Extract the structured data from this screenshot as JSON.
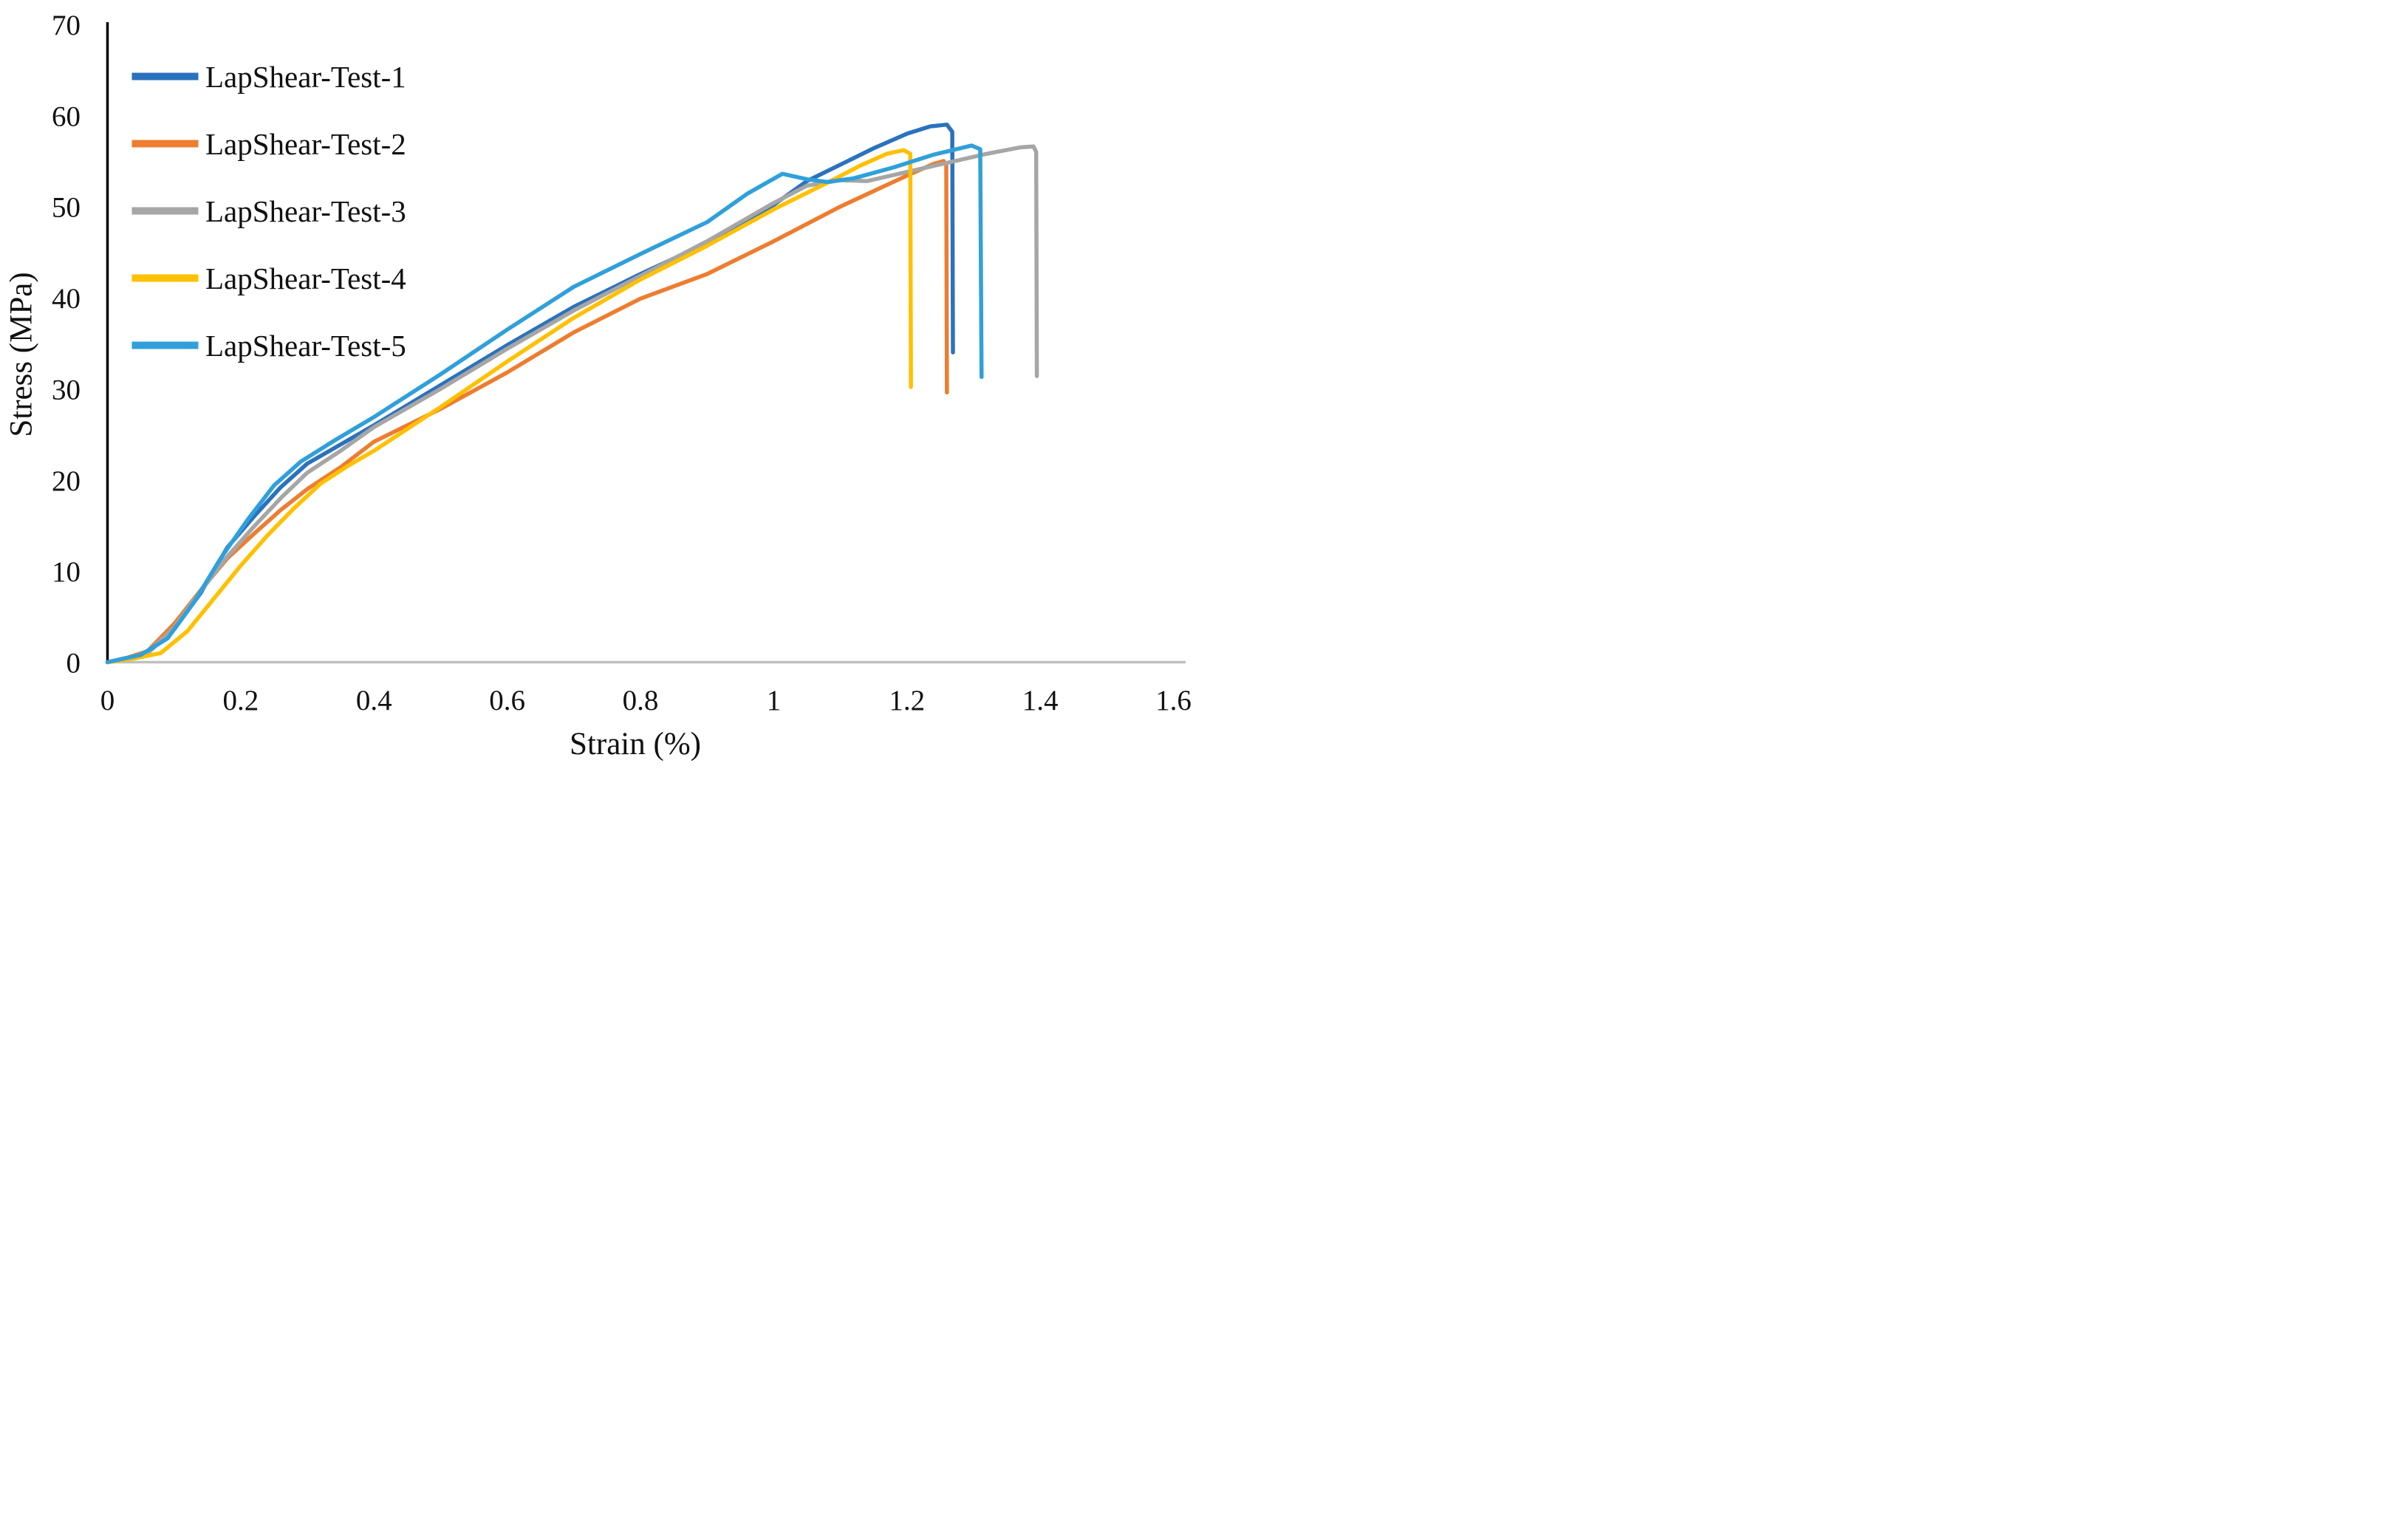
{
  "chart_data": {
    "type": "line",
    "title": "",
    "xlabel": "Strain (%)",
    "ylabel": "Stress (MPa)",
    "xlim": [
      0,
      1.6
    ],
    "ylim": [
      0,
      70
    ],
    "grid": false,
    "legend_position": "inside-top-left",
    "x_tick_values": [
      0,
      0.2,
      0.4,
      0.6,
      0.8,
      1,
      1.2,
      1.4,
      1.6
    ],
    "x_tick_labels": [
      "0",
      "0.2",
      "0.4",
      "0.6",
      "0.8",
      "1",
      "1.2",
      "1.4",
      "1.6"
    ],
    "y_tick_values": [
      0,
      10,
      20,
      30,
      40,
      50,
      60,
      70
    ],
    "y_tick_labels": [
      "0",
      "10",
      "20",
      "30",
      "40",
      "50",
      "60",
      "70"
    ],
    "axis_colors": {
      "x_axis_line": "#BFBFBF",
      "y_axis_line": "#000000",
      "text": "#111111"
    },
    "series": [
      {
        "name": "LapShear-Test-1",
        "color": "#2B72BE",
        "points": [
          [
            0,
            0
          ],
          [
            0.03,
            0.4
          ],
          [
            0.06,
            1.0
          ],
          [
            0.1,
            3.6
          ],
          [
            0.14,
            7.6
          ],
          [
            0.18,
            12.6
          ],
          [
            0.22,
            16.0
          ],
          [
            0.26,
            19.2
          ],
          [
            0.3,
            21.8
          ],
          [
            0.35,
            23.9
          ],
          [
            0.4,
            26.0
          ],
          [
            0.5,
            30.4
          ],
          [
            0.6,
            34.8
          ],
          [
            0.7,
            39.0
          ],
          [
            0.8,
            42.6
          ],
          [
            0.9,
            46.0
          ],
          [
            1.0,
            50.2
          ],
          [
            1.05,
            52.8
          ],
          [
            1.1,
            54.6
          ],
          [
            1.15,
            56.4
          ],
          [
            1.2,
            58.0
          ],
          [
            1.235,
            58.8
          ],
          [
            1.26,
            59.0
          ],
          [
            1.268,
            58.2
          ],
          [
            1.269,
            34.0
          ]
        ]
      },
      {
        "name": "LapShear-Test-2",
        "color": "#ED7D31",
        "points": [
          [
            0,
            0
          ],
          [
            0.03,
            0.5
          ],
          [
            0.06,
            1.2
          ],
          [
            0.1,
            4.2
          ],
          [
            0.14,
            7.9
          ],
          [
            0.18,
            11.4
          ],
          [
            0.22,
            14.1
          ],
          [
            0.26,
            16.7
          ],
          [
            0.3,
            19.0
          ],
          [
            0.35,
            21.4
          ],
          [
            0.4,
            24.2
          ],
          [
            0.5,
            27.8
          ],
          [
            0.6,
            31.8
          ],
          [
            0.7,
            36.2
          ],
          [
            0.8,
            39.9
          ],
          [
            0.9,
            42.6
          ],
          [
            1.0,
            46.2
          ],
          [
            1.1,
            50.0
          ],
          [
            1.2,
            53.4
          ],
          [
            1.24,
            54.7
          ],
          [
            1.255,
            55.0
          ],
          [
            1.259,
            54.6
          ],
          [
            1.26,
            29.6
          ]
        ]
      },
      {
        "name": "LapShear-Test-3",
        "color": "#A6A6A6",
        "points": [
          [
            0,
            0
          ],
          [
            0.03,
            0.4
          ],
          [
            0.06,
            1.0
          ],
          [
            0.1,
            3.8
          ],
          [
            0.14,
            7.8
          ],
          [
            0.18,
            11.6
          ],
          [
            0.22,
            14.9
          ],
          [
            0.26,
            18.0
          ],
          [
            0.3,
            20.8
          ],
          [
            0.35,
            23.2
          ],
          [
            0.4,
            25.8
          ],
          [
            0.5,
            30.0
          ],
          [
            0.6,
            34.4
          ],
          [
            0.7,
            38.6
          ],
          [
            0.8,
            42.4
          ],
          [
            0.9,
            46.2
          ],
          [
            1.0,
            50.4
          ],
          [
            1.05,
            52.3
          ],
          [
            1.1,
            52.9
          ],
          [
            1.14,
            52.8
          ],
          [
            1.2,
            53.8
          ],
          [
            1.26,
            54.8
          ],
          [
            1.32,
            55.8
          ],
          [
            1.37,
            56.5
          ],
          [
            1.39,
            56.6
          ],
          [
            1.394,
            56.0
          ],
          [
            1.395,
            31.4
          ]
        ]
      },
      {
        "name": "LapShear-Test-4",
        "color": "#FFC000",
        "points": [
          [
            0,
            0
          ],
          [
            0.04,
            0.4
          ],
          [
            0.08,
            1.0
          ],
          [
            0.12,
            3.4
          ],
          [
            0.16,
            7.0
          ],
          [
            0.2,
            10.6
          ],
          [
            0.24,
            13.9
          ],
          [
            0.28,
            16.9
          ],
          [
            0.32,
            19.6
          ],
          [
            0.36,
            21.5
          ],
          [
            0.4,
            23.2
          ],
          [
            0.5,
            28.0
          ],
          [
            0.6,
            33.0
          ],
          [
            0.7,
            37.8
          ],
          [
            0.8,
            42.0
          ],
          [
            0.9,
            45.7
          ],
          [
            1.0,
            49.7
          ],
          [
            1.08,
            52.6
          ],
          [
            1.13,
            54.5
          ],
          [
            1.17,
            55.8
          ],
          [
            1.195,
            56.2
          ],
          [
            1.205,
            55.8
          ],
          [
            1.206,
            30.2
          ]
        ]
      },
      {
        "name": "LapShear-Test-5",
        "color": "#30A0DA",
        "points": [
          [
            0,
            0
          ],
          [
            0.025,
            0.4
          ],
          [
            0.05,
            0.8
          ],
          [
            0.09,
            2.6
          ],
          [
            0.13,
            6.6
          ],
          [
            0.17,
            11.4
          ],
          [
            0.21,
            15.6
          ],
          [
            0.25,
            19.4
          ],
          [
            0.29,
            22.0
          ],
          [
            0.34,
            24.3
          ],
          [
            0.4,
            26.9
          ],
          [
            0.5,
            31.6
          ],
          [
            0.6,
            36.5
          ],
          [
            0.7,
            41.2
          ],
          [
            0.8,
            44.8
          ],
          [
            0.9,
            48.3
          ],
          [
            0.96,
            51.4
          ],
          [
            1.013,
            53.6
          ],
          [
            1.05,
            53.0
          ],
          [
            1.08,
            52.7
          ],
          [
            1.12,
            53.1
          ],
          [
            1.18,
            54.3
          ],
          [
            1.24,
            55.7
          ],
          [
            1.297,
            56.7
          ],
          [
            1.31,
            56.3
          ],
          [
            1.312,
            31.3
          ]
        ]
      }
    ]
  }
}
